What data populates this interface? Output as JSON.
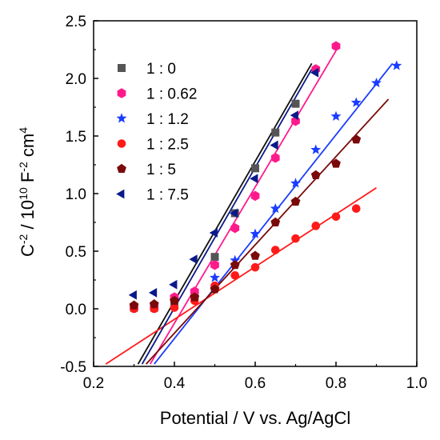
{
  "chart_data": {
    "type": "scatter",
    "xlabel": "Potential / V vs. Ag/AgCl",
    "ylabel_parts": {
      "c": "C",
      "c_exp": "-2",
      "mid": " / 10",
      "ten_exp": "10",
      "f": " F",
      "f_exp": "-2",
      "cm": " cm",
      "cm_exp": "4"
    },
    "xlim": [
      0.2,
      1.0
    ],
    "ylim": [
      -0.5,
      2.5
    ],
    "xticks": [
      "0.2",
      "0.4",
      "0.6",
      "0.8",
      "1.0"
    ],
    "yticks": [
      "-0.5",
      "0.0",
      "0.5",
      "1.0",
      "1.5",
      "2.0",
      "2.5"
    ],
    "xtick_values": [
      0.2,
      0.4,
      0.6,
      0.8,
      1.0
    ],
    "ytick_values": [
      -0.5,
      0.0,
      0.5,
      1.0,
      1.5,
      2.0,
      2.5
    ],
    "grid": false,
    "legend_position": "top-left",
    "series": [
      {
        "name": "1 : 0",
        "marker": "square",
        "color": "#555555",
        "x": [
          0.3,
          0.35,
          0.4,
          0.45,
          0.5,
          0.55,
          0.6,
          0.65,
          0.7
        ],
        "y": [
          0.01,
          0.01,
          0.03,
          0.12,
          0.45,
          0.83,
          1.22,
          1.53,
          1.78
        ],
        "fit": {
          "x": [
            0.31,
            0.74
          ],
          "y": [
            -0.48,
            2.13
          ],
          "color": "#111111"
        }
      },
      {
        "name": "1 : 0.62",
        "marker": "hexagon",
        "color": "#ff1a8c",
        "x": [
          0.3,
          0.35,
          0.4,
          0.45,
          0.5,
          0.55,
          0.6,
          0.65,
          0.7,
          0.75,
          0.8
        ],
        "y": [
          0.01,
          0.01,
          0.1,
          0.15,
          0.38,
          0.7,
          0.98,
          1.31,
          1.63,
          2.08,
          2.28
        ],
        "fit": {
          "x": [
            0.34,
            0.8
          ],
          "y": [
            -0.48,
            2.24
          ],
          "color": "#ff1a8c"
        }
      },
      {
        "name": "1 : 1.2",
        "marker": "star",
        "color": "#1a3cff",
        "x": [
          0.5,
          0.55,
          0.6,
          0.65,
          0.7,
          0.75,
          0.8,
          0.85,
          0.9,
          0.95
        ],
        "y": [
          0.27,
          0.42,
          0.65,
          0.87,
          1.09,
          1.38,
          1.67,
          1.79,
          1.96,
          2.11
        ],
        "fit": {
          "x": [
            0.35,
            0.94
          ],
          "y": [
            -0.48,
            2.13
          ],
          "color": "#1a3cff"
        }
      },
      {
        "name": "1 : 2.5",
        "marker": "circle",
        "color": "#ff1a1a",
        "x": [
          0.3,
          0.35,
          0.4,
          0.45,
          0.5,
          0.55,
          0.6,
          0.65,
          0.7,
          0.75,
          0.8,
          0.85
        ],
        "y": [
          0.0,
          0.0,
          0.01,
          0.07,
          0.2,
          0.29,
          0.36,
          0.51,
          0.61,
          0.72,
          0.8,
          0.87
        ],
        "fit": {
          "x": [
            0.23,
            0.9
          ],
          "y": [
            -0.48,
            1.05
          ],
          "color": "#ff1a1a"
        }
      },
      {
        "name": "1 : 5",
        "marker": "pentagon",
        "color": "#7a0a0a",
        "x": [
          0.3,
          0.35,
          0.4,
          0.45,
          0.5,
          0.55,
          0.6,
          0.65,
          0.7,
          0.75,
          0.8,
          0.85
        ],
        "y": [
          0.03,
          0.04,
          0.07,
          0.1,
          0.17,
          0.38,
          0.46,
          0.75,
          0.93,
          1.16,
          1.26,
          1.47
        ],
        "fit": {
          "x": [
            0.33,
            0.93
          ],
          "y": [
            -0.48,
            1.82
          ],
          "color": "#7a0a0a"
        }
      },
      {
        "name": "1 : 7.5",
        "marker": "triangle-left",
        "color": "#0a1a8a",
        "x": [
          0.3,
          0.35,
          0.4,
          0.45,
          0.5,
          0.55,
          0.6,
          0.65,
          0.7,
          0.75
        ],
        "y": [
          0.12,
          0.14,
          0.21,
          0.43,
          0.66,
          0.83,
          1.13,
          1.42,
          1.68,
          2.05
        ],
        "fit": {
          "x": [
            0.32,
            0.74
          ],
          "y": [
            -0.48,
            2.08
          ],
          "color": "#0a1a8a"
        }
      }
    ]
  }
}
